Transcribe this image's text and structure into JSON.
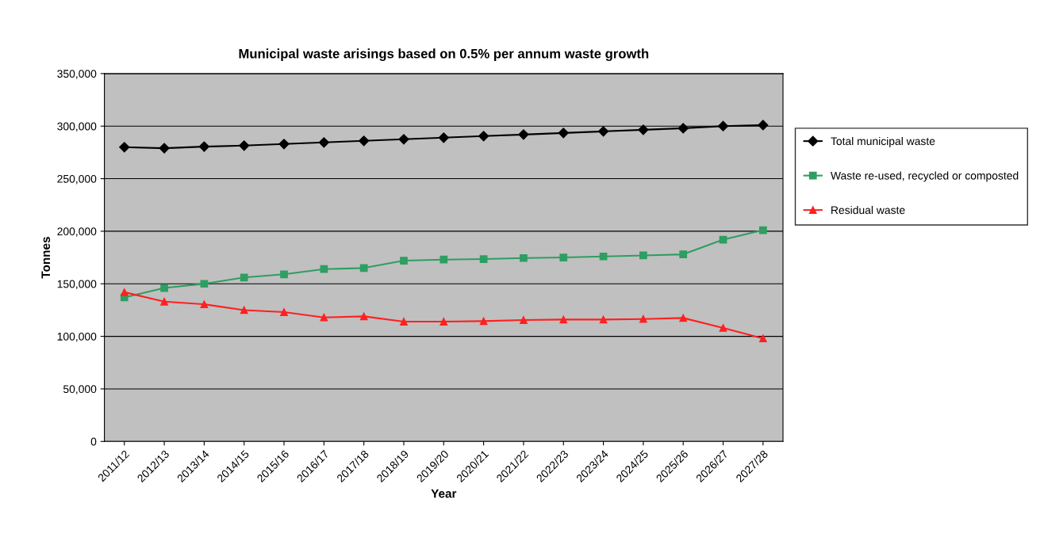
{
  "chart_data": {
    "type": "line",
    "title": "Municipal waste arisings based on 0.5% per annum waste growth",
    "xlabel": "Year",
    "ylabel": "Tonnes",
    "categories": [
      "2011/12",
      "2012/13",
      "2013/14",
      "2014/15",
      "2015/16",
      "2016/17",
      "2017/18",
      "2018/19",
      "2019/20",
      "2020/21",
      "2021/22",
      "2022/23",
      "2023/24",
      "2024/25",
      "2025/26",
      "2026/27",
      "2027/28"
    ],
    "series": [
      {
        "name": "Total municipal waste",
        "color": "#000000",
        "marker": "diamond",
        "values": [
          280000,
          279000,
          280500,
          281500,
          283000,
          284500,
          286000,
          287500,
          289000,
          290500,
          292000,
          293500,
          295000,
          296500,
          298000,
          300000,
          301000
        ]
      },
      {
        "name": "Waste re-used, recycled or composted",
        "color": "#2e9e62",
        "marker": "square",
        "values": [
          137000,
          146000,
          150000,
          156000,
          159000,
          164000,
          165000,
          172000,
          173000,
          173500,
          174500,
          175000,
          176000,
          177000,
          178000,
          192000,
          201000
        ]
      },
      {
        "name": "Residual waste",
        "color": "#ff2020",
        "marker": "triangle",
        "values": [
          142000,
          133000,
          130500,
          125000,
          123000,
          118000,
          119000,
          114000,
          114000,
          114500,
          115500,
          116000,
          116000,
          116500,
          117500,
          108000,
          98000
        ]
      }
    ],
    "ylim": [
      0,
      350000
    ],
    "yticks": [
      {
        "value": 0,
        "label": "0"
      },
      {
        "value": 50000,
        "label": "50,000"
      },
      {
        "value": 100000,
        "label": "100,000"
      },
      {
        "value": 150000,
        "label": "150,000"
      },
      {
        "value": 200000,
        "label": "200,000"
      },
      {
        "value": 250000,
        "label": "250,000"
      },
      {
        "value": 300000,
        "label": "300,000"
      },
      {
        "value": 350000,
        "label": "350,000"
      }
    ],
    "grid": "y",
    "legend": "right",
    "line_style": "solid"
  }
}
